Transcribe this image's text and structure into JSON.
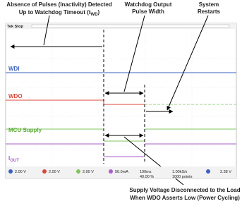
{
  "annotations": {
    "inactivity": {
      "line1": "Absence of Pulses (Inactivity) Detected",
      "line2": "Up to Watchdog Timeout (t",
      "line2_sub": "WD",
      "line2_end": ")"
    },
    "pulse_width": {
      "line1": "Watchdog Output",
      "line2": "Pulse Width"
    },
    "restarts": {
      "line1": "System",
      "line2": "Restarts"
    },
    "supply": {
      "line1": "Supply Voltage Disconnected to the Load",
      "line2": "When WDO Asserts Low (Power Cycling)"
    }
  },
  "scope": {
    "status": "Tek Stop",
    "channels": [
      {
        "label": "WDI"
      },
      {
        "label": "WDO"
      },
      {
        "label": "MCU Supply"
      },
      {
        "label": "I",
        "label_sub": "OUT"
      }
    ],
    "readouts": {
      "ch1": "2.00 V",
      "ch2": "2.00 V",
      "ch3": "2.00 V",
      "ch4": "50.0mA",
      "timebase": "100ms",
      "position": "40.00 %",
      "rate": "1.00kS/s",
      "points": "1000 points",
      "trigger": "2.38 V"
    }
  }
}
